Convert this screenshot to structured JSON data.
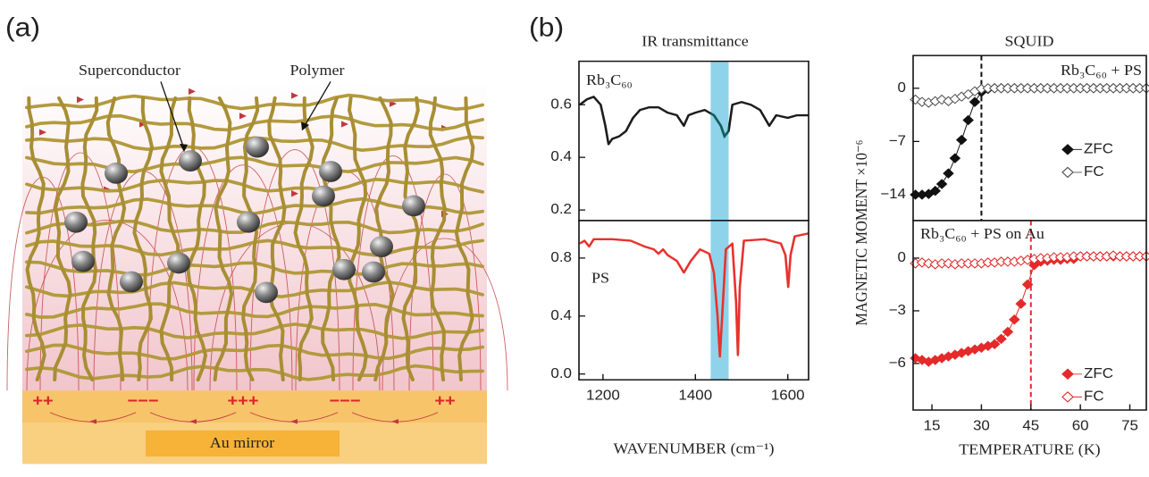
{
  "panel_a": {
    "label": "(a)",
    "superconductor": "Superconductor",
    "polymer": "Polymer",
    "mirror": "Au mirror",
    "charges": [
      "++",
      "−−−",
      "+++",
      "−−−",
      "++"
    ]
  },
  "panel_b": {
    "label": "(b)"
  },
  "chart_data": [
    {
      "type": "line",
      "title": "IR transmittance",
      "annotation": "Rb₃C₆₀",
      "x": [
        1150,
        1165,
        1180,
        1195,
        1205,
        1212,
        1220,
        1235,
        1250,
        1265,
        1280,
        1300,
        1320,
        1340,
        1360,
        1375,
        1385,
        1400,
        1420,
        1440,
        1455,
        1463,
        1472,
        1480,
        1500,
        1520,
        1540,
        1560,
        1575,
        1600,
        1620,
        1645
      ],
      "values": [
        0.6,
        0.62,
        0.63,
        0.6,
        0.52,
        0.45,
        0.47,
        0.48,
        0.5,
        0.55,
        0.58,
        0.59,
        0.59,
        0.57,
        0.56,
        0.52,
        0.56,
        0.57,
        0.58,
        0.56,
        0.52,
        0.48,
        0.5,
        0.6,
        0.61,
        0.6,
        0.58,
        0.52,
        0.56,
        0.55,
        0.56,
        0.56
      ],
      "color": "#1c1c1c",
      "highlight": [
        1433,
        1472
      ],
      "highlight_color": "#8fd3ea",
      "highlight_line_color": "#11605f",
      "xlim": [
        1148,
        1645
      ],
      "ylim": [
        0.16,
        0.765
      ],
      "yticks": [
        0.2,
        0.4,
        0.6
      ]
    },
    {
      "type": "line",
      "xlabel": "WAVENUMBER (cm⁻¹)",
      "annotation": "PS",
      "x": [
        1150,
        1160,
        1170,
        1180,
        1220,
        1260,
        1290,
        1310,
        1320,
        1330,
        1340,
        1360,
        1375,
        1390,
        1410,
        1430,
        1440,
        1448,
        1453,
        1458,
        1466,
        1480,
        1488,
        1492,
        1496,
        1505,
        1550,
        1585,
        1595,
        1601,
        1606,
        1615,
        1645
      ],
      "values": [
        0.9,
        0.92,
        0.88,
        0.93,
        0.93,
        0.92,
        0.88,
        0.86,
        0.83,
        0.86,
        0.82,
        0.78,
        0.7,
        0.78,
        0.86,
        0.83,
        0.7,
        0.4,
        0.12,
        0.4,
        0.86,
        0.9,
        0.5,
        0.13,
        0.6,
        0.92,
        0.93,
        0.9,
        0.82,
        0.6,
        0.82,
        0.95,
        0.97
      ],
      "color": "#e8322d",
      "highlight": [
        1433,
        1472
      ],
      "highlight_color": "#8fd3ea",
      "xlim": [
        1148,
        1645
      ],
      "ylim": [
        -0.04,
        1.059
      ],
      "xticks": [
        1200,
        1400,
        1600
      ],
      "yticks": [
        {
          "value": 0,
          "label": "0.0"
        },
        0.4,
        0.8
      ]
    },
    {
      "type": "line",
      "title": "SQUID",
      "ylabel": "MAGNETIC MOMENT ×10⁻⁶",
      "annotation": "Rb₃C₆₀ + PS",
      "x": [
        10,
        12,
        14,
        16,
        18,
        20,
        22,
        24,
        26,
        28,
        30,
        32,
        34,
        36,
        38,
        40,
        42,
        44,
        46,
        48,
        50,
        52,
        54,
        56,
        58,
        60,
        62,
        64,
        66,
        68,
        70,
        72,
        74,
        76,
        78,
        80
      ],
      "series": [
        {
          "name": "ZFC",
          "color": "#111111",
          "filled": true,
          "line": true,
          "values": [
            -14,
            -14,
            -13.9,
            -13.5,
            -12.6,
            -11.2,
            -9.2,
            -6.8,
            -4.2,
            -1.8,
            -0.5,
            -0.1,
            0,
            0,
            0,
            0,
            0,
            0,
            0,
            0,
            0,
            0,
            0,
            0,
            0,
            0,
            0,
            0,
            0,
            0,
            0,
            0,
            0,
            0,
            0,
            0
          ]
        },
        {
          "name": "FC",
          "color": "#555555",
          "filled": false,
          "line": false,
          "values": [
            -1.5,
            -1.8,
            -1.9,
            -1.7,
            -1.5,
            -1.7,
            -1.4,
            -1.1,
            -0.8,
            -0.4,
            -0.1,
            0,
            0,
            0,
            0,
            0,
            0,
            0,
            0,
            0,
            0,
            0,
            0,
            0,
            0,
            0,
            0,
            0,
            0,
            0,
            0,
            0,
            0,
            0,
            0,
            0
          ]
        }
      ],
      "vline": 30,
      "vline_color": "#111111",
      "legend": "right",
      "xlim": [
        9.3,
        80
      ],
      "ylim": [
        -17.4,
        4.3
      ],
      "yticks": [
        {
          "value": -14,
          "label": "−14"
        },
        {
          "value": -7,
          "label": "−7"
        },
        0
      ]
    },
    {
      "type": "line",
      "xlabel": "TEMPERATURE (K)",
      "annotation": "Rb₃C₆₀ + PS on Au",
      "x": [
        10,
        12,
        14,
        16,
        18,
        20,
        22,
        24,
        26,
        28,
        30,
        32,
        34,
        36,
        38,
        40,
        42,
        44,
        46,
        48,
        50,
        52,
        54,
        56,
        58,
        60,
        62,
        64,
        66,
        68,
        70,
        72,
        74,
        76,
        78,
        80
      ],
      "series": [
        {
          "name": "ZFC",
          "color": "#e42a2a",
          "filled": true,
          "line": true,
          "values": [
            -5.7,
            -5.8,
            -5.9,
            -5.8,
            -5.7,
            -5.6,
            -5.5,
            -5.4,
            -5.3,
            -5.2,
            -5.1,
            -5.0,
            -4.9,
            -4.6,
            -4.2,
            -3.5,
            -2.6,
            -1.5,
            -0.4,
            -0.2,
            -0.15,
            -0.1,
            -0.1,
            -0.05,
            -0.05,
            0.1,
            0.1,
            0.1,
            0.1,
            0.1,
            0.1,
            0.1,
            0.1,
            0.1,
            0.1,
            0.1
          ]
        },
        {
          "name": "FC",
          "color": "#e42a2a",
          "filled": false,
          "line": false,
          "values": [
            -0.3,
            -0.25,
            -0.3,
            -0.35,
            -0.3,
            -0.3,
            -0.35,
            -0.3,
            -0.3,
            -0.3,
            -0.3,
            -0.25,
            -0.25,
            -0.2,
            -0.2,
            -0.2,
            -0.15,
            -0.1,
            -0.05,
            0,
            0,
            0.05,
            0.05,
            0.05,
            0.1,
            0.1,
            0.1,
            0.1,
            0.1,
            0.1,
            0.15,
            0.1,
            0.1,
            0.1,
            0.1,
            0.1
          ]
        }
      ],
      "vline": 45,
      "vline_color": "#e42a2a",
      "legend": "right",
      "xlim": [
        9.3,
        80
      ],
      "ylim": [
        -8.65,
        2.14
      ],
      "xticks": [
        15,
        30,
        45,
        60,
        75
      ],
      "yticks": [
        {
          "value": -6,
          "label": "−6"
        },
        {
          "value": -3,
          "label": "−3"
        },
        0
      ]
    }
  ]
}
